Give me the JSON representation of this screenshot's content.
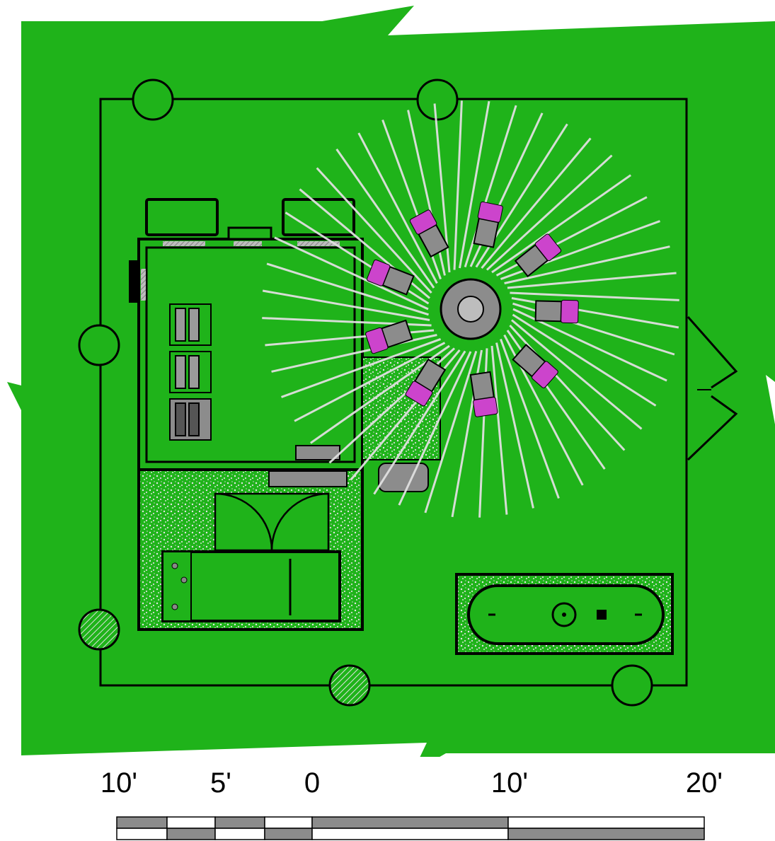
{
  "colors": {
    "grass": "#1fb31a",
    "line": "#000000",
    "texture": "#cfcfcf",
    "magenta": "#cc44cc",
    "gray": "#8c8c8c",
    "scale_dark": "#8c8c8c",
    "scale_light": "#ffffff"
  },
  "scale": {
    "labels": [
      "10'",
      "5'",
      "0",
      "10'",
      "20'"
    ]
  },
  "icons": {
    "pillar": "circle-pillar-icon",
    "hatched_pillar": "hatched-circle-pillar-icon",
    "seat": "magenta-seat-icon"
  }
}
